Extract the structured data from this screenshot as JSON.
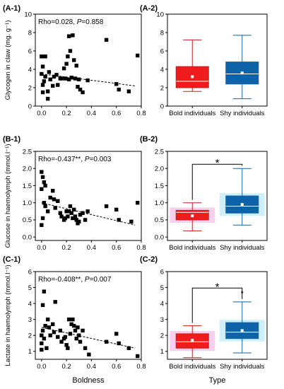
{
  "colors": {
    "bold": "#ee1c1c",
    "shy": "#0e63a8",
    "halo_bold": "#f3c0e6",
    "halo_shy": "#bfeaf7"
  },
  "xlabels": {
    "left": "Boldness",
    "right": "Type"
  },
  "box_categories": [
    "Bold individuals",
    "Shy individuals"
  ],
  "chart_data": [
    {
      "type": "scatter",
      "panel": "(A-1)",
      "ylabel": "Glycogen in claw (mg. g⁻¹)",
      "stat_rho": "Rho=0.028, ",
      "stat_p_letter": "P",
      "stat_p_value": "=0.858",
      "xlim": [
        -0.05,
        0.8
      ],
      "ylim": [
        0,
        10
      ],
      "xticks": [
        0.0,
        0.2,
        0.4,
        0.6,
        0.8
      ],
      "xticklabels": [
        "0.0",
        "0.2",
        "0.4",
        "0.6",
        "0.8"
      ],
      "yticks": [
        0,
        2,
        4,
        6,
        8,
        10
      ],
      "yticklabels": [
        "0",
        "2",
        "4",
        "6",
        "8",
        "10"
      ],
      "trend": [
        [
          0.0,
          3.5
        ],
        [
          0.75,
          2.2
        ]
      ],
      "x": [
        0.0,
        0.0,
        0.01,
        0.01,
        0.01,
        0.02,
        0.03,
        0.03,
        0.05,
        0.05,
        0.06,
        0.07,
        0.09,
        0.1,
        0.12,
        0.13,
        0.15,
        0.16,
        0.18,
        0.19,
        0.2,
        0.21,
        0.22,
        0.22,
        0.23,
        0.24,
        0.25,
        0.26,
        0.27,
        0.28,
        0.29,
        0.3,
        0.31,
        0.33,
        0.37,
        0.52,
        0.6,
        0.62,
        0.7,
        0.77
      ],
      "y": [
        3.5,
        5.4,
        2.3,
        1.5,
        4.3,
        2.7,
        5.4,
        3.2,
        1.6,
        0.8,
        3.7,
        2.9,
        2.2,
        3.2,
        3.4,
        2.3,
        3.0,
        3.0,
        4.1,
        3.0,
        4.6,
        5.4,
        2.9,
        7.6,
        6.0,
        3.1,
        7.7,
        5.0,
        3.0,
        4.4,
        2.1,
        2.9,
        1.8,
        1.5,
        2.8,
        7.2,
        2.4,
        1.8,
        1.6,
        5.5
      ]
    },
    {
      "type": "box",
      "panel": "(A-2)",
      "ylim": [
        0,
        10
      ],
      "yticks": [
        0,
        2,
        4,
        6,
        8,
        10
      ],
      "yticklabels": [
        "0",
        "2",
        "4",
        "6",
        "8",
        "10"
      ],
      "boxes": [
        {
          "whisker_low": 1.6,
          "q1": 2.0,
          "median": 2.7,
          "mean": 3.2,
          "q3": 4.3,
          "whisker_high": 7.2
        },
        {
          "whisker_low": 0.8,
          "q1": 2.4,
          "median": 3.5,
          "mean": 3.6,
          "q3": 4.8,
          "whisker_high": 7.7
        }
      ],
      "significance": ""
    },
    {
      "type": "scatter",
      "panel": "(B-1)",
      "ylabel": "Glucose in haemolymph (mmol.l⁻¹)",
      "stat_rho": "Rho=-0.437**, ",
      "stat_p_letter": "P",
      "stat_p_value": "=0.003",
      "xlim": [
        -0.05,
        0.8
      ],
      "ylim": [
        -0.1,
        2.5
      ],
      "xticks": [
        0.0,
        0.2,
        0.4,
        0.6,
        0.8
      ],
      "xticklabels": [
        "0.0",
        "0.2",
        "0.4",
        "0.6",
        "0.8"
      ],
      "yticks": [
        0.0,
        0.5,
        1.0,
        1.5,
        2.0,
        2.5
      ],
      "yticklabels": [
        "0.0",
        "0.5",
        "1.0",
        "1.5",
        "2.0",
        "2.5"
      ],
      "trend": [
        [
          0.0,
          1.0
        ],
        [
          0.75,
          0.35
        ]
      ],
      "x": [
        0.0,
        0.0,
        0.0,
        0.01,
        0.01,
        0.02,
        0.02,
        0.03,
        0.03,
        0.05,
        0.07,
        0.09,
        0.1,
        0.11,
        0.13,
        0.15,
        0.16,
        0.18,
        0.19,
        0.2,
        0.21,
        0.22,
        0.23,
        0.24,
        0.25,
        0.26,
        0.27,
        0.28,
        0.29,
        0.3,
        0.31,
        0.33,
        0.35,
        0.37,
        0.52,
        0.6,
        0.62,
        0.72,
        0.77
      ],
      "y": [
        1.9,
        1.4,
        0.35,
        1.75,
        0.55,
        1.6,
        1.0,
        1.5,
        0.9,
        0.75,
        1.15,
        1.35,
        1.1,
        0.85,
        1.05,
        0.7,
        0.6,
        0.5,
        0.55,
        0.75,
        0.6,
        0.75,
        0.9,
        0.7,
        0.55,
        0.8,
        0.6,
        0.5,
        0.4,
        0.45,
        0.65,
        0.7,
        0.5,
        0.75,
        0.9,
        0.8,
        0.5,
        0.45,
        1.0
      ]
    },
    {
      "type": "box",
      "panel": "(B-2)",
      "ylim": [
        -0.1,
        2.5
      ],
      "yticks": [
        0.0,
        0.5,
        1.0,
        1.5,
        2.0,
        2.5
      ],
      "yticklabels": [
        "0.0",
        "0.5",
        "1.0",
        "1.5",
        "2.0",
        "2.5"
      ],
      "boxes": [
        {
          "whisker_low": 0.18,
          "q1": 0.5,
          "median": 0.72,
          "mean": 0.62,
          "q3": 0.78,
          "whisker_high": 1.0
        },
        {
          "whisker_low": 0.35,
          "q1": 0.7,
          "median": 0.9,
          "mean": 0.95,
          "q3": 1.2,
          "whisker_high": 2.0
        }
      ],
      "significance": "*"
    },
    {
      "type": "scatter",
      "panel": "(C-1)",
      "ylabel": "Lactate in haemolymph (mmol.l⁻¹)",
      "stat_rho": "Rho=-0.408**, ",
      "stat_p_letter": "P",
      "stat_p_value": "=0.007",
      "xlim": [
        -0.05,
        0.8
      ],
      "ylim": [
        0.5,
        6
      ],
      "xticks": [
        0.0,
        0.2,
        0.4,
        0.6,
        0.8
      ],
      "xticklabels": [
        "0.0",
        "0.2",
        "0.4",
        "0.6",
        "0.8"
      ],
      "yticks": [
        1,
        2,
        3,
        4,
        5,
        6
      ],
      "yticklabels": [
        "1",
        "2",
        "3",
        "4",
        "5",
        "6"
      ],
      "trend": [
        [
          0.0,
          2.5
        ],
        [
          0.75,
          1.2
        ]
      ],
      "x": [
        0.0,
        0.0,
        0.0,
        0.01,
        0.01,
        0.02,
        0.02,
        0.03,
        0.04,
        0.05,
        0.06,
        0.07,
        0.09,
        0.1,
        0.11,
        0.13,
        0.15,
        0.16,
        0.18,
        0.19,
        0.2,
        0.21,
        0.22,
        0.23,
        0.24,
        0.25,
        0.26,
        0.27,
        0.28,
        0.29,
        0.3,
        0.31,
        0.33,
        0.35,
        0.38,
        0.52,
        0.6,
        0.62,
        0.7,
        0.77
      ],
      "y": [
        2.0,
        1.5,
        1.1,
        3.9,
        2.3,
        4.75,
        1.8,
        2.6,
        1.2,
        3.0,
        2.5,
        2.0,
        2.7,
        2.2,
        4.1,
        1.9,
        2.3,
        1.6,
        1.8,
        1.9,
        1.4,
        1.2,
        3.0,
        2.1,
        2.7,
        3.0,
        2.6,
        2.3,
        1.8,
        2.5,
        2.0,
        1.6,
        2.3,
        1.2,
        0.8,
        1.6,
        2.1,
        1.5,
        1.2,
        0.7
      ]
    },
    {
      "type": "box",
      "panel": "(C-2)",
      "ylim": [
        0.5,
        6
      ],
      "yticks": [
        1,
        2,
        3,
        4,
        5,
        6
      ],
      "yticklabels": [
        "1",
        "2",
        "3",
        "4",
        "5",
        "6"
      ],
      "boxes": [
        {
          "whisker_low": 0.6,
          "q1": 1.2,
          "median": 1.6,
          "mean": 1.7,
          "q3": 2.1,
          "whisker_high": 2.6
        },
        {
          "whisker_low": 0.9,
          "q1": 1.8,
          "median": 2.2,
          "mean": 2.3,
          "q3": 2.8,
          "whisker_high": 4.1,
          "outliers": [
            4.7
          ]
        }
      ],
      "significance": "*"
    }
  ]
}
